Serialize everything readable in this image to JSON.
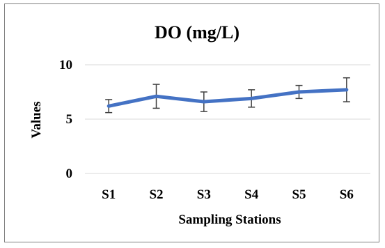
{
  "chart_data": {
    "type": "line",
    "title": "DO (mg/L)",
    "xlabel": "Sampling Stations",
    "ylabel": "Values",
    "categories": [
      "S1",
      "S2",
      "S3",
      "S4",
      "S5",
      "S6"
    ],
    "series": [
      {
        "values": [
          6.2,
          7.1,
          6.6,
          6.9,
          7.5,
          7.7
        ],
        "error": [
          0.6,
          1.1,
          0.9,
          0.8,
          0.6,
          1.1
        ],
        "color": "#4472c4"
      }
    ],
    "yticks": [
      "0",
      "5",
      "10"
    ],
    "ylim": [
      0,
      10
    ],
    "grid": true,
    "legend": "none"
  }
}
